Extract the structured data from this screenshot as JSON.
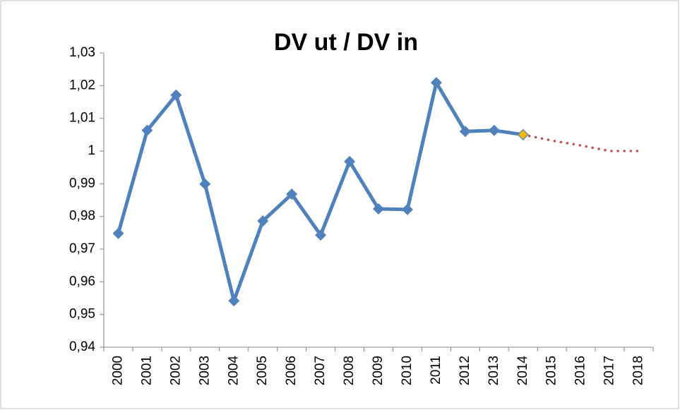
{
  "chart_data": {
    "type": "line",
    "title": "DV ut / DV in",
    "categories": [
      "2000",
      "2001",
      "2002",
      "2003",
      "2004",
      "2005",
      "2006",
      "2007",
      "2008",
      "2009",
      "2010",
      "2011",
      "2012",
      "2013",
      "2014",
      "2015",
      "2016",
      "2017",
      "2018"
    ],
    "series": [
      {
        "color": "#4f81bd",
        "style": "solid",
        "marker": "diamond",
        "values": [
          0.9748,
          1.0063,
          1.0171,
          0.9899,
          0.9542,
          0.9786,
          0.9868,
          0.9743,
          0.9968,
          0.9823,
          0.9821,
          1.0209,
          1.006,
          1.0063,
          1.005,
          null,
          null,
          null,
          null
        ]
      },
      {
        "color": "#c0504d",
        "style": "dotted",
        "marker": "first",
        "marker_color": "#f2b800",
        "values": [
          null,
          null,
          null,
          null,
          null,
          null,
          null,
          null,
          null,
          null,
          null,
          null,
          null,
          null,
          1.005,
          1.0032,
          1.0017,
          1.0,
          1.0
        ]
      }
    ],
    "ylim": [
      0.94,
      1.03
    ],
    "yticks": [
      {
        "value": 0.94,
        "label": "0,94"
      },
      {
        "value": 0.95,
        "label": "0,95"
      },
      {
        "value": 0.96,
        "label": "0,96"
      },
      {
        "value": 0.97,
        "label": "0,97"
      },
      {
        "value": 0.98,
        "label": "0,98"
      },
      {
        "value": 0.99,
        "label": "0,99"
      },
      1,
      {
        "value": 1.01,
        "label": "1,01"
      },
      {
        "value": 1.02,
        "label": "1,02"
      },
      {
        "value": 1.03,
        "label": "1,03"
      }
    ],
    "grid": false
  }
}
